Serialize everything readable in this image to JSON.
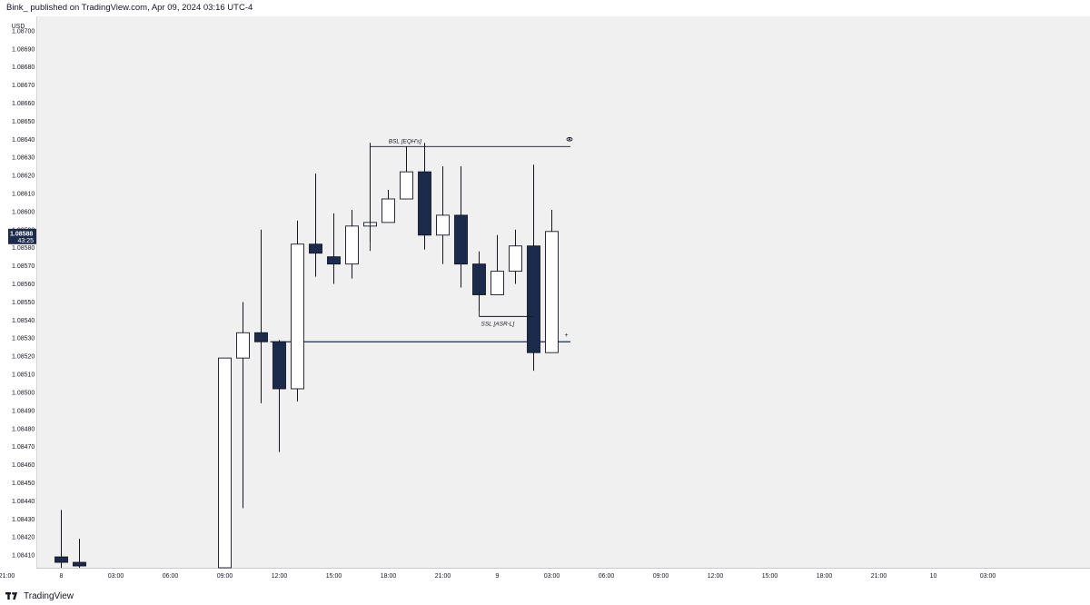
{
  "header": {
    "publish_line": "Bink_ published on TradingView.com, Apr 09, 2024 03:16 UTC-4"
  },
  "footer": {
    "brand": "TradingView",
    "logo_icon": "tradingview-logo-icon"
  },
  "colors": {
    "background": "#ffffff",
    "plot_background": "#f0f0f0",
    "bear_body": "#1c2a4c",
    "bull_body": "#ffffff",
    "wick": "#131722",
    "level_line": "#1c2a4c",
    "price_tag": "#1c2a4c"
  },
  "chart_data": {
    "type": "candlestick",
    "currency_label": "USD",
    "y_ticks": [
      "1.08700",
      "1.08690",
      "1.08680",
      "1.08670",
      "1.08660",
      "1.08650",
      "1.08640",
      "1.08630",
      "1.08620",
      "1.08610",
      "1.08600",
      "1.08590",
      "1.08580",
      "1.08570",
      "1.08560",
      "1.08550",
      "1.08540",
      "1.08530",
      "1.08520",
      "1.08510",
      "1.08500",
      "1.08490",
      "1.08480",
      "1.08470",
      "1.08460",
      "1.08450",
      "1.08440",
      "1.08430",
      "1.08420",
      "1.08410"
    ],
    "ylim": [
      1.08403,
      1.08708
    ],
    "x_ticks": [
      "21:00",
      "8",
      "03:00",
      "06:00",
      "09:00",
      "12:00",
      "15:00",
      "18:00",
      "21:00",
      "9",
      "03:00",
      "06:00",
      "09:00",
      "12:00",
      "15:00",
      "18:00",
      "21:00",
      "10",
      "03:00"
    ],
    "interval": "1h",
    "candles": [
      {
        "t": "Apr 08 00:00",
        "o": 1.08409,
        "h": 1.08435,
        "l": 1.084,
        "c": 1.08406
      },
      {
        "t": "Apr 08 01:00",
        "o": 1.08406,
        "h": 1.08419,
        "l": 1.084,
        "c": 1.08404
      },
      {
        "t": "Apr 08 09:00",
        "o": 1.084,
        "h": 1.08519,
        "l": 1.08395,
        "c": 1.08519
      },
      {
        "t": "Apr 08 10:00",
        "o": 1.08519,
        "h": 1.0855,
        "l": 1.08436,
        "c": 1.08533
      },
      {
        "t": "Apr 08 11:00",
        "o": 1.08533,
        "h": 1.0859,
        "l": 1.08494,
        "c": 1.08528
      },
      {
        "t": "Apr 08 12:00",
        "o": 1.08528,
        "h": 1.08529,
        "l": 1.08467,
        "c": 1.08502
      },
      {
        "t": "Apr 08 13:00",
        "o": 1.08502,
        "h": 1.08595,
        "l": 1.08495,
        "c": 1.08582
      },
      {
        "t": "Apr 08 14:00",
        "o": 1.08582,
        "h": 1.08621,
        "l": 1.08564,
        "c": 1.08577
      },
      {
        "t": "Apr 08 15:00",
        "o": 1.08575,
        "h": 1.08599,
        "l": 1.0856,
        "c": 1.08571
      },
      {
        "t": "Apr 08 16:00",
        "o": 1.08571,
        "h": 1.08601,
        "l": 1.08563,
        "c": 1.08592
      },
      {
        "t": "Apr 08 17:00",
        "o": 1.08592,
        "h": 1.08638,
        "l": 1.08583,
        "c": 1.08594
      },
      {
        "t": "Apr 08 18:00",
        "o": 1.08594,
        "h": 1.08612,
        "l": 1.08594,
        "c": 1.08607
      },
      {
        "t": "Apr 08 19:00",
        "o": 1.08607,
        "h": 1.08636,
        "l": 1.08607,
        "c": 1.08622
      },
      {
        "t": "Apr 08 20:00",
        "o": 1.08622,
        "h": 1.08638,
        "l": 1.08579,
        "c": 1.08587
      },
      {
        "t": "Apr 08 21:00",
        "o": 1.08587,
        "h": 1.08625,
        "l": 1.08571,
        "c": 1.08598
      },
      {
        "t": "Apr 08 22:00",
        "o": 1.08598,
        "h": 1.08625,
        "l": 1.08558,
        "c": 1.08571
      },
      {
        "t": "Apr 08 23:00",
        "o": 1.08571,
        "h": 1.08578,
        "l": 1.08545,
        "c": 1.08554
      },
      {
        "t": "Apr 09 00:00",
        "o": 1.08554,
        "h": 1.08587,
        "l": 1.08554,
        "c": 1.08567
      },
      {
        "t": "Apr 09 01:00",
        "o": 1.08567,
        "h": 1.0859,
        "l": 1.0856,
        "c": 1.08581
      },
      {
        "t": "Apr 09 02:00",
        "o": 1.08581,
        "h": 1.08626,
        "l": 1.08512,
        "c": 1.08522
      },
      {
        "t": "Apr 09 03:00",
        "o": 1.08522,
        "h": 1.08601,
        "l": 1.08522,
        "c": 1.08589
      }
    ],
    "current_price": {
      "value": "1.08588",
      "countdown": "43:25"
    },
    "annotations": [
      {
        "label": "BSL [EQH's]",
        "price": 1.08636,
        "from": "Apr 08 17:00",
        "to": "Apr 09 04:00",
        "style": "bracket"
      },
      {
        "label": "SSL [ASR-L]",
        "price": 1.08542,
        "from": "Apr 08 23:00",
        "to": "Apr 09 02:00",
        "style": "bracket"
      },
      {
        "label": "",
        "price": 1.08528,
        "from": "Apr 08 12:00",
        "to": "Apr 09 04:00",
        "style": "line"
      }
    ]
  }
}
